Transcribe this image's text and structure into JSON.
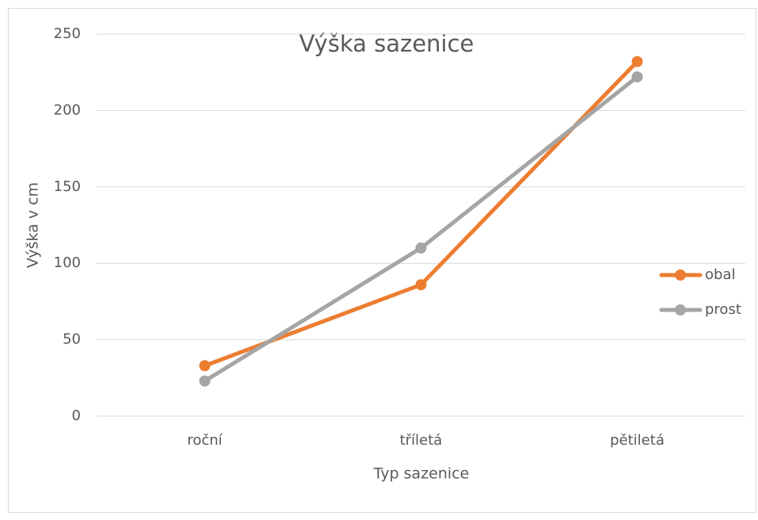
{
  "chart_data": {
    "type": "line",
    "title": "Výška sazenice",
    "x_label": "Typ sazenice",
    "y_label": "Výška v cm",
    "categories": [
      "roční",
      "tříletá",
      "pětiletá"
    ],
    "series": [
      {
        "name": "obal",
        "color": "#ed7d31",
        "values": [
          33,
          86,
          232
        ]
      },
      {
        "name": "prost",
        "color": "#a5a5a5",
        "values": [
          23,
          110,
          222
        ]
      }
    ],
    "ylim": [
      0,
      250
    ],
    "yticks": [
      0,
      50,
      100,
      150,
      200,
      250
    ],
    "grid": true,
    "legend": "right"
  }
}
